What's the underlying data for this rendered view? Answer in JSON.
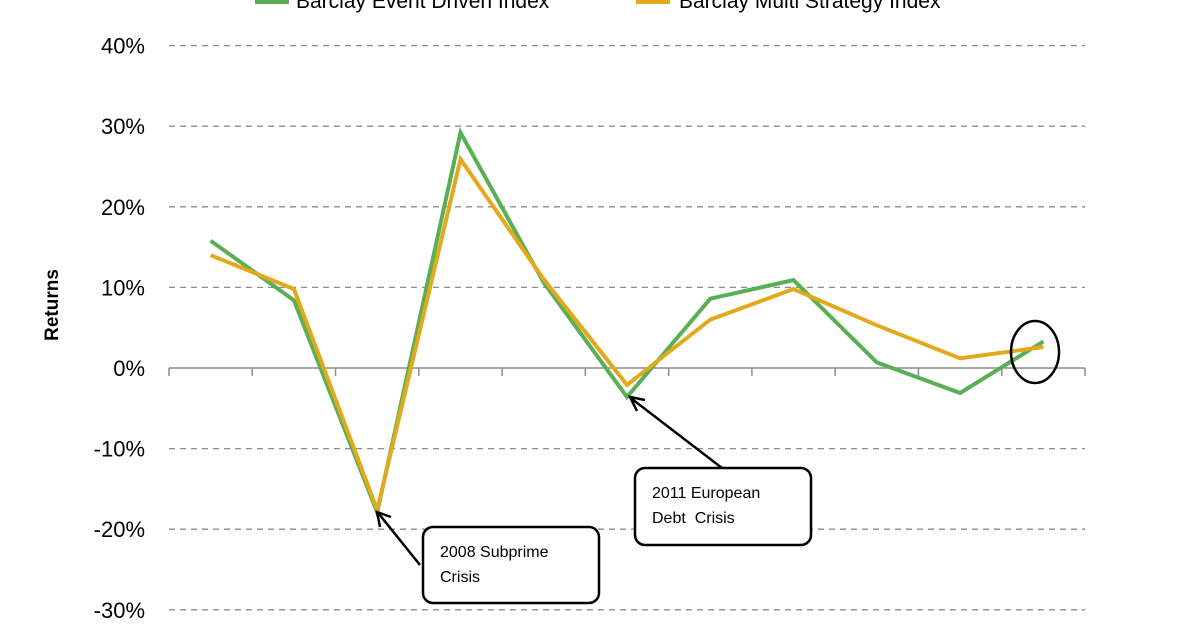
{
  "chart_data": {
    "type": "line",
    "title": "",
    "xlabel": "",
    "ylabel": "Returns",
    "ylim": [
      -30,
      40
    ],
    "yticks": [
      "40%",
      "30%",
      "20%",
      "10%",
      "0%",
      "-10%",
      "-20%",
      "-30%"
    ],
    "ytick_values": [
      40,
      30,
      20,
      10,
      0,
      -10,
      -20,
      -30
    ],
    "grid": "horizontal dashed",
    "legend_position": "top",
    "series": [
      {
        "name": "Barclay Event Driven Index",
        "color": "#5aae55",
        "values": [
          15.8,
          8.4,
          -17.9,
          29.2,
          10.6,
          -3.6,
          8.6,
          10.9,
          0.7,
          -3.1,
          3.3
        ]
      },
      {
        "name": "Barclay Multi Strategy Index",
        "color": "#e3a91d",
        "values": [
          14.0,
          9.8,
          -17.6,
          25.9,
          11.0,
          -2.1,
          6.0,
          9.8,
          5.3,
          1.2,
          2.6
        ]
      }
    ],
    "annotations": [
      {
        "line1": "2008 Subprime",
        "line2": "Crisis",
        "point_index": 2
      },
      {
        "line1": "2011 European",
        "line2": "Debt  Crisis",
        "point_index": 5
      }
    ],
    "highlight_point_index": 10
  }
}
